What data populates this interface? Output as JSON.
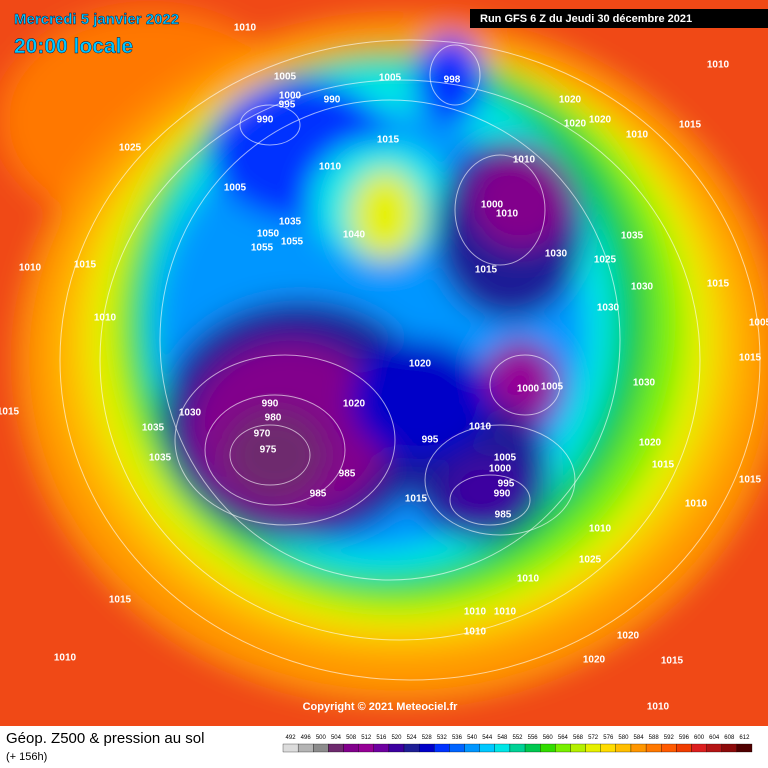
{
  "header": {
    "date": "Mercredi 5 janvier 2022",
    "time": "20:00 locale",
    "run": "Run GFS 6 Z du Jeudi 30 décembre 2021"
  },
  "copyright": "Copyright © 2021 Meteociel.fr",
  "footer": {
    "title": "Géop. Z500 & pression au sol",
    "lead": "(+ 156h)"
  },
  "scale": {
    "values": [
      492,
      496,
      500,
      504,
      508,
      512,
      516,
      520,
      524,
      528,
      532,
      536,
      540,
      544,
      548,
      552,
      556,
      560,
      564,
      568,
      572,
      576,
      580,
      584,
      588,
      592,
      596,
      600,
      604,
      608,
      612
    ],
    "colors": [
      "#dcdcdc",
      "#b4b4b4",
      "#8c8c8c",
      "#6e2a6e",
      "#82008c",
      "#960096",
      "#6e00a0",
      "#3c00a0",
      "#1e1e96",
      "#0000c8",
      "#0032ff",
      "#0064ff",
      "#0096ff",
      "#00c8ff",
      "#00e6e6",
      "#00d296",
      "#00c850",
      "#32dc00",
      "#78f000",
      "#b4f000",
      "#e6f000",
      "#ffdc00",
      "#ffbe00",
      "#ff9600",
      "#ff7800",
      "#ff5a00",
      "#f03c00",
      "#dc1e1e",
      "#b41414",
      "#8c0a0a",
      "#500000"
    ]
  },
  "pressure_labels": [
    1010,
    1005,
    1000,
    995,
    990,
    990,
    1005,
    998,
    1020,
    1020,
    1020,
    1010,
    1015,
    1010,
    1025,
    1015,
    1010,
    1005,
    1010,
    1000,
    1010,
    1035,
    1050,
    1055,
    1055,
    1040,
    1035,
    1025,
    1030,
    1015,
    1010,
    1015,
    1010,
    1030,
    1015,
    1030,
    1020,
    1000,
    1005,
    1030,
    990,
    980,
    970,
    1020,
    1010,
    995,
    975,
    985,
    1005,
    1000,
    995,
    990,
    985,
    1015,
    985,
    1030,
    1035,
    1035,
    1015,
    1020,
    1015,
    1010,
    1015,
    1010,
    1025,
    1010,
    1010,
    1010,
    1010,
    1015,
    1020,
    1020,
    1015,
    1010,
    1010,
    1015,
    1005
  ]
}
